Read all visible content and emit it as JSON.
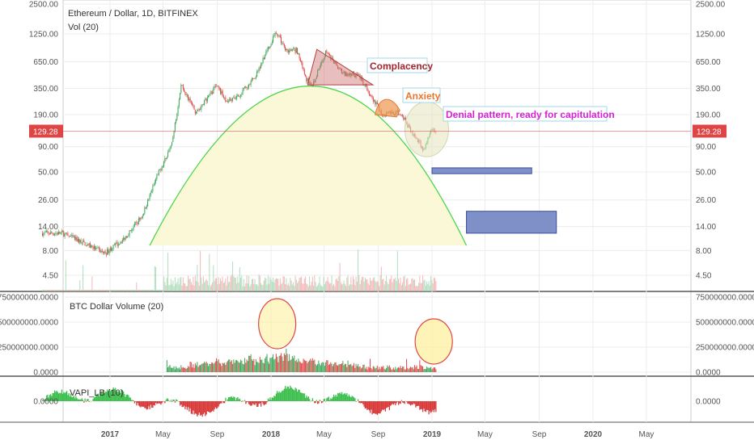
{
  "chart_data": {
    "type": "candlestick",
    "title": "Ethereum / Dollar, 1D, BITFINEX",
    "volume_label": "Vol (20)",
    "y_scale": "log",
    "yticks": [
      "2500.00",
      "1250.00",
      "650.00",
      "350.00",
      "190.00",
      "90.00",
      "50.00",
      "26.00",
      "14.00",
      "8.00",
      "4.50"
    ],
    "ylim": [
      3.5,
      2500
    ],
    "last_price": "129.28",
    "x_ticks": [
      "2017",
      "May",
      "Sep",
      "2018",
      "May",
      "Sep",
      "2019",
      "May",
      "Sep",
      "2020",
      "May"
    ],
    "price_path": {
      "dates": [
        "2016-08-01",
        "2016-09-15",
        "2016-11-15",
        "2016-12-20",
        "2017-02-01",
        "2017-03-15",
        "2017-04-20",
        "2017-05-20",
        "2017-06-12",
        "2017-07-15",
        "2017-08-15",
        "2017-09-01",
        "2017-09-20",
        "2017-10-20",
        "2017-11-25",
        "2017-12-15",
        "2018-01-13",
        "2018-02-05",
        "2018-03-01",
        "2018-03-20",
        "2018-04-05",
        "2018-05-05",
        "2018-06-15",
        "2018-07-20",
        "2018-08-15",
        "2018-09-12",
        "2018-10-20",
        "2018-11-20",
        "2018-12-14",
        "2019-01-01",
        "2019-01-10"
      ],
      "close": [
        12,
        12,
        9,
        7.5,
        10.5,
        18,
        48,
        90,
        380,
        200,
        300,
        380,
        260,
        300,
        450,
        700,
        1300,
        850,
        850,
        450,
        380,
        800,
        500,
        470,
        300,
        190,
        200,
        120,
        85,
        140,
        129.28
      ]
    },
    "panels": [
      {
        "name": "BTC Dollar Volume (20)",
        "yticks": [
          "750000000.0000",
          "500000000.0000",
          "250000000.0000",
          "0.0000"
        ],
        "ylim": [
          0,
          750000000
        ]
      },
      {
        "name": "VAPI_LB (10)",
        "yticks": [
          "0.0000"
        ]
      }
    ],
    "annotations": [
      {
        "text": "Complacency",
        "color": "#a0262f"
      },
      {
        "text": "Anxiety",
        "color": "#e8762d"
      },
      {
        "text": "Denial pattern, ready for capitulation",
        "color": "#d61fd6"
      }
    ],
    "arc": {
      "color": "#4cd64c",
      "fill": "#fbf8d8"
    },
    "target_boxes": [
      {
        "label": "",
        "from": "2019-01-01",
        "to": "2019-08-15",
        "top": 55,
        "bottom": 48
      },
      {
        "label": "",
        "from": "2019-03-20",
        "to": "2019-10-10",
        "top": 20,
        "bottom": 12
      }
    ],
    "colors": {
      "up": "#3aa655",
      "down": "#e04545",
      "price_line": "#e04545",
      "grid": "#ececec"
    }
  }
}
